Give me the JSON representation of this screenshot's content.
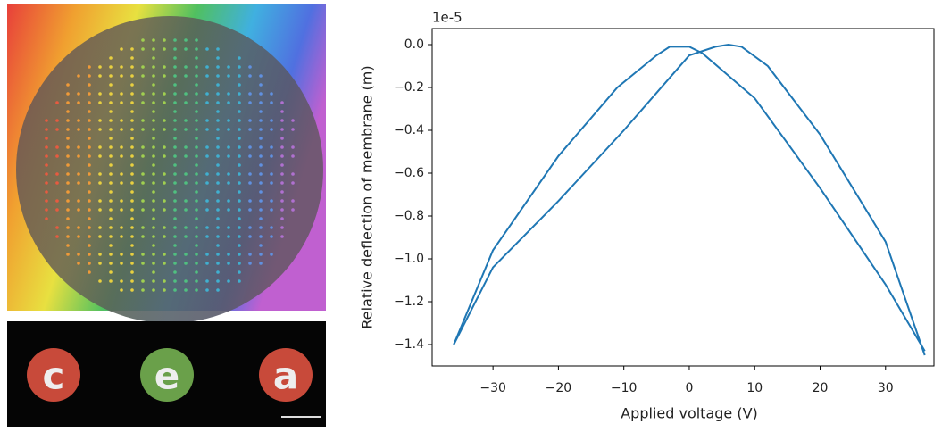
{
  "chart_data": {
    "type": "line",
    "xlabel": "Applied voltage (V)",
    "ylabel": "Relative deflection of membrane (m)",
    "offset_text": "1e-5",
    "xlim": [
      -39.3,
      37.4
    ],
    "ylim": [
      -1.5,
      0.075
    ],
    "xticks": [
      {
        "value": -30,
        "label": "−30"
      },
      {
        "value": -20,
        "label": "−20"
      },
      {
        "value": -10,
        "label": "−10"
      },
      0,
      10,
      20,
      30
    ],
    "yticks": [
      {
        "value": 0,
        "label": "0.0"
      },
      {
        "value": -0.2,
        "label": "−0.2"
      },
      {
        "value": -0.4,
        "label": "−0.4"
      },
      {
        "value": -0.6,
        "label": "−0.6"
      },
      {
        "value": -0.8,
        "label": "−0.8"
      },
      {
        "value": -1.0,
        "label": "−1.0"
      },
      {
        "value": -1.2,
        "label": "−1.2"
      },
      {
        "value": -1.4,
        "label": "−1.4"
      }
    ],
    "series": [
      {
        "color": "#1f77b4",
        "x": [
          -36,
          -30,
          -20,
          -11,
          -5,
          -3,
          0,
          2,
          10,
          20,
          30,
          36
        ],
        "values": [
          -1.4,
          -0.96,
          -0.52,
          -0.2,
          -0.05,
          -0.01,
          -0.01,
          -0.04,
          -0.25,
          -0.67,
          -1.12,
          -1.43
        ]
      },
      {
        "color": "#1f77b4",
        "x": [
          -36,
          -30,
          -20,
          -10,
          0,
          4,
          6,
          8,
          12,
          20,
          30,
          36
        ],
        "values": [
          -1.4,
          -1.04,
          -0.73,
          -0.4,
          -0.05,
          -0.01,
          0.0,
          -0.01,
          -0.1,
          -0.42,
          -0.92,
          -1.45
        ]
      }
    ]
  },
  "photo": {
    "letters": [
      "c",
      "e",
      "a"
    ]
  }
}
